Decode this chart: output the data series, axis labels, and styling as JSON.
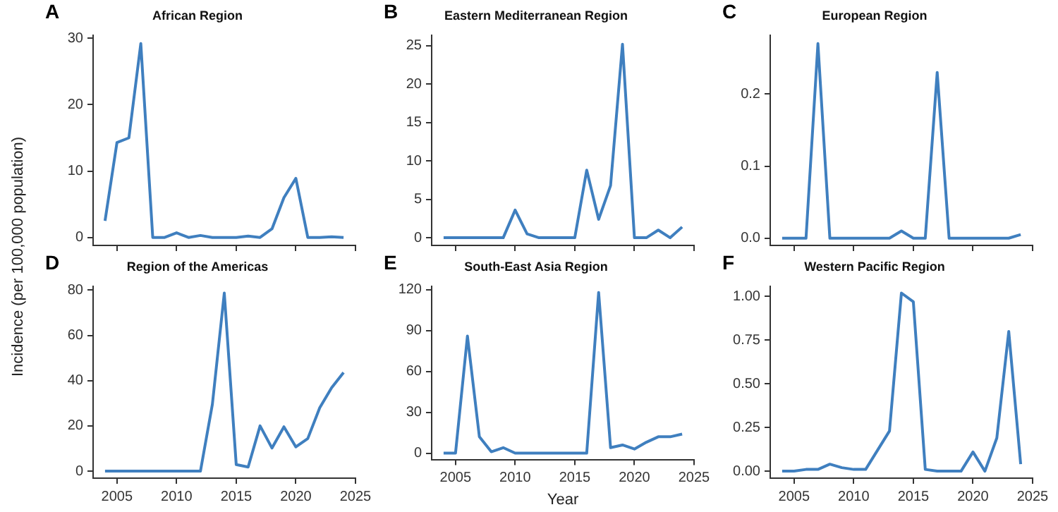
{
  "chart_data": [
    {
      "type": "line",
      "title": "African Region",
      "annotations": [
        "A"
      ],
      "x": [
        2004,
        2005,
        2006,
        2007,
        2008,
        2009,
        2010,
        2011,
        2012,
        2013,
        2014,
        2015,
        2016,
        2017,
        2018,
        2019,
        2020,
        2021,
        2022,
        2023,
        2024
      ],
      "series": [
        {
          "color": "#3f7fbf",
          "values": [
            2.5,
            14.3,
            15,
            29.2,
            0,
            0,
            0.7,
            0,
            0.3,
            0,
            0,
            0,
            0.2,
            0,
            1.3,
            6,
            8.9,
            0,
            0,
            0.1,
            0
          ]
        }
      ],
      "xlim": [
        2003,
        2025
      ],
      "xticks": [
        2005,
        2010,
        2015,
        2020,
        2025
      ],
      "ylim": [
        -1.2,
        30.5
      ],
      "yticks": [
        0,
        10,
        20,
        30
      ],
      "tick_labels": "y",
      "grid": false,
      "legend": false,
      "marker": "none",
      "line_style": "solid"
    },
    {
      "type": "line",
      "title": "Eastern Mediterranean Region",
      "annotations": [
        "B"
      ],
      "x": [
        2004,
        2005,
        2006,
        2007,
        2008,
        2009,
        2010,
        2011,
        2012,
        2013,
        2014,
        2015,
        2016,
        2017,
        2018,
        2019,
        2020,
        2021,
        2022,
        2023,
        2024
      ],
      "series": [
        {
          "color": "#3f7fbf",
          "values": [
            0,
            0,
            0,
            0,
            0,
            0,
            3.6,
            0.5,
            0,
            0,
            0,
            0,
            8.8,
            2.4,
            6.8,
            25.2,
            0,
            0,
            1,
            0,
            1.4
          ]
        }
      ],
      "xlim": [
        2003,
        2025
      ],
      "xticks": [
        2005,
        2010,
        2015,
        2020,
        2025
      ],
      "ylim": [
        -1,
        26.4
      ],
      "yticks": [
        0,
        5,
        10,
        15,
        20,
        25
      ],
      "tick_labels": "y",
      "grid": false,
      "legend": false,
      "marker": "none",
      "line_style": "solid"
    },
    {
      "type": "line",
      "title": "European Region",
      "annotations": [
        "C"
      ],
      "x": [
        2004,
        2005,
        2006,
        2007,
        2008,
        2009,
        2010,
        2011,
        2012,
        2013,
        2014,
        2015,
        2016,
        2017,
        2018,
        2019,
        2020,
        2021,
        2022,
        2023,
        2024
      ],
      "series": [
        {
          "color": "#3f7fbf",
          "values": [
            0,
            0,
            0,
            0.27,
            0,
            0,
            0,
            0,
            0,
            0,
            0.01,
            0,
            0,
            0.23,
            0,
            0,
            0,
            0,
            0,
            0,
            0.005
          ]
        }
      ],
      "xlim": [
        2003,
        2025
      ],
      "xticks": [
        2005,
        2010,
        2015,
        2020,
        2025
      ],
      "ylim": [
        -0.01,
        0.282
      ],
      "yticks": [
        {
          "value": 0,
          "label": "0.0"
        },
        {
          "value": 0.1,
          "label": "0.1"
        },
        {
          "value": 0.2,
          "label": "0.2"
        }
      ],
      "tick_labels": "y",
      "grid": false,
      "legend": false,
      "marker": "none",
      "line_style": "solid"
    },
    {
      "type": "line",
      "title": "Region of the Americas",
      "annotations": [
        "D"
      ],
      "ylabel": "Incidence (per 100,000 population)",
      "x": [
        2004,
        2005,
        2006,
        2007,
        2008,
        2009,
        2010,
        2011,
        2012,
        2013,
        2014,
        2015,
        2016,
        2017,
        2018,
        2019,
        2020,
        2021,
        2022,
        2023,
        2024
      ],
      "series": [
        {
          "color": "#3f7fbf",
          "values": [
            0,
            0,
            0,
            0,
            0,
            0,
            0,
            0,
            0,
            29.5,
            78.7,
            2.9,
            1.8,
            20,
            10.2,
            19.6,
            10.7,
            14.4,
            28,
            36.9,
            43.6
          ]
        }
      ],
      "xlim": [
        2003,
        2025
      ],
      "xticks": [
        2005,
        2010,
        2015,
        2020,
        2025
      ],
      "ylim": [
        -3.1,
        81.8
      ],
      "yticks": [
        0,
        20,
        40,
        60,
        80
      ],
      "grid": false,
      "legend": false,
      "marker": "none",
      "line_style": "solid"
    },
    {
      "type": "line",
      "title": "South-East Asia Region",
      "annotations": [
        "E"
      ],
      "xlabel": "Year",
      "x": [
        2004,
        2005,
        2006,
        2007,
        2008,
        2009,
        2010,
        2011,
        2012,
        2013,
        2014,
        2015,
        2016,
        2017,
        2018,
        2019,
        2020,
        2021,
        2022,
        2023,
        2024
      ],
      "series": [
        {
          "color": "#3f7fbf",
          "values": [
            0,
            0,
            86,
            12,
            1,
            4,
            0,
            0,
            0,
            0,
            0,
            0,
            0,
            118,
            4,
            6,
            3,
            8,
            12,
            12,
            14
          ]
        }
      ],
      "xlim": [
        2003,
        2025
      ],
      "xticks": [
        2005,
        2010,
        2015,
        2020,
        2025
      ],
      "ylim": [
        -4.7,
        122.7
      ],
      "yticks": [
        0,
        30,
        60,
        90,
        120
      ],
      "grid": false,
      "legend": false,
      "marker": "none",
      "line_style": "solid"
    },
    {
      "type": "line",
      "title": "Western Pacific Region",
      "annotations": [
        "F"
      ],
      "x": [
        2004,
        2005,
        2006,
        2007,
        2008,
        2009,
        2010,
        2011,
        2012,
        2013,
        2014,
        2015,
        2016,
        2017,
        2018,
        2019,
        2020,
        2021,
        2022,
        2023,
        2024
      ],
      "series": [
        {
          "color": "#3f7fbf",
          "values": [
            0,
            0,
            0.01,
            0.01,
            0.04,
            0.02,
            0.01,
            0.01,
            0.12,
            0.23,
            1.02,
            0.97,
            0.01,
            0,
            0,
            0,
            0.11,
            0,
            0.19,
            0.8,
            0.04
          ]
        }
      ],
      "xlim": [
        2003,
        2025
      ],
      "xticks": [
        2005,
        2010,
        2015,
        2020,
        2025
      ],
      "ylim": [
        -0.04,
        1.06
      ],
      "yticks": [
        {
          "value": 0,
          "label": "0.00"
        },
        {
          "value": 0.25,
          "label": "0.25"
        },
        {
          "value": 0.5,
          "label": "0.50"
        },
        {
          "value": 0.75,
          "label": "0.75"
        },
        {
          "value": 1,
          "label": "1.00"
        }
      ],
      "grid": false,
      "legend": false,
      "marker": "none",
      "line_style": "solid"
    }
  ]
}
